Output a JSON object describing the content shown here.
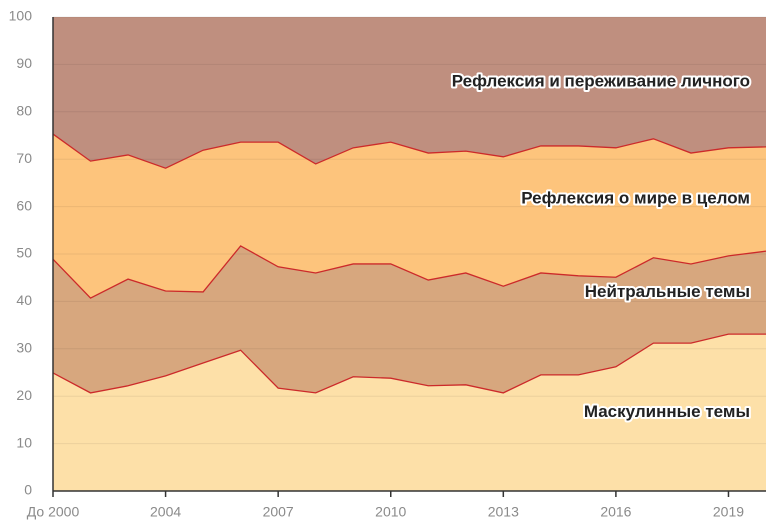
{
  "chart_data": {
    "type": "stacked-area",
    "categories": [
      "До 2000",
      null,
      null,
      "2004",
      null,
      null,
      "2007",
      null,
      null,
      "2010",
      null,
      null,
      "2013",
      null,
      null,
      "2016",
      null,
      null,
      "2019",
      null
    ],
    "series": [
      {
        "name": "Маскулинные темы",
        "color": "#fde0a8",
        "values": [
          24.9,
          20.7,
          22.2,
          24.3,
          27.0,
          29.7,
          21.7,
          20.7,
          24.1,
          23.8,
          22.2,
          22.4,
          20.7,
          24.5,
          24.5,
          26.2,
          31.2,
          31.2,
          33.1,
          33.1
        ]
      },
      {
        "name": "Нейтральные темы",
        "color": "#d7a77e",
        "values": [
          24.0,
          20.0,
          22.5,
          17.9,
          15.0,
          22.0,
          25.6,
          25.3,
          23.8,
          24.1,
          22.3,
          23.6,
          22.5,
          21.5,
          20.9,
          18.9,
          18.0,
          16.7,
          16.5,
          17.5
        ]
      },
      {
        "name": "Рефлексия о мире в целом",
        "color": "#fdc47c",
        "values": [
          26.4,
          28.9,
          26.2,
          25.9,
          29.9,
          21.9,
          26.3,
          23.0,
          24.5,
          25.7,
          26.8,
          25.7,
          27.3,
          26.8,
          27.4,
          27.3,
          25.1,
          23.4,
          22.8,
          22.0
        ]
      },
      {
        "name": "Рефлексия и переживание личного",
        "color": "#bf8f7f",
        "values": [
          24.7,
          30.4,
          29.1,
          31.9,
          28.1,
          26.4,
          26.4,
          31.0,
          27.6,
          26.4,
          28.7,
          28.3,
          29.5,
          27.2,
          27.2,
          27.6,
          25.7,
          28.7,
          27.6,
          27.4
        ]
      }
    ],
    "line_color": "#cc2a2a",
    "ylim": [
      0,
      100
    ],
    "yticks": [
      0,
      10,
      20,
      30,
      40,
      50,
      60,
      70,
      80,
      90,
      100
    ],
    "grid": true
  }
}
